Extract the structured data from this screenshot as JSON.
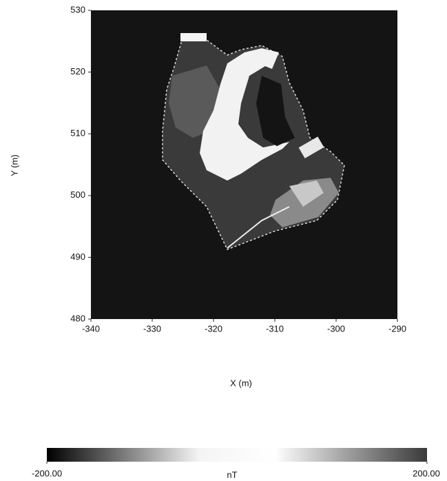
{
  "chart_data": {
    "type": "image",
    "xlabel": "X (m)",
    "ylabel": "Y (m)",
    "xlim": [
      -340,
      -290
    ],
    "xticks": [
      -340,
      -330,
      -320,
      -310,
      -300,
      -290
    ],
    "ylim": [
      480,
      530
    ],
    "yticks": [
      480,
      490,
      500,
      510,
      520,
      530
    ],
    "colorbar": {
      "label": "nT",
      "lim": [
        -200,
        200
      ],
      "ticks": [
        {
          "value": -200,
          "label": "-200.00"
        },
        {
          "value": 200,
          "label": "200.00"
        }
      ],
      "colors": [
        "#000000",
        "#7a7a7a",
        "#f4f4f4",
        "#ffffff",
        "#9a9a9a",
        "#3a3a3a"
      ]
    }
  }
}
